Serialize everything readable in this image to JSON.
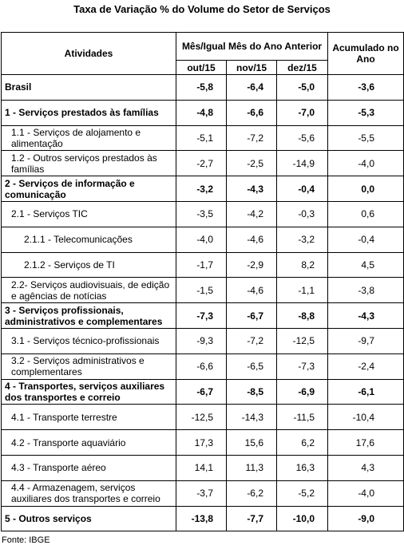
{
  "title": "Taxa de Variação % do Volume do Setor de Serviços",
  "table": {
    "header": {
      "activities": "Atividades",
      "group": "Mês/Igual Mês do Ano Anterior",
      "months": [
        "out/15",
        "nov/15",
        "dez/15"
      ],
      "accumulated": "Acumulado no Ano"
    },
    "rows": [
      [
        "Brasil",
        "-5,8",
        "-6,4",
        "-5,0",
        "-3,6"
      ],
      [
        "1 - Serviços prestados às famílias",
        "-4,8",
        "-6,6",
        "-7,0",
        "-5,3"
      ],
      [
        "1.1 - Serviços de alojamento e alimentação",
        "-5,1",
        "-7,2",
        "-5,6",
        "-5,5"
      ],
      [
        "1.2 - Outros serviços prestados às famílias",
        "-2,7",
        "-2,5",
        "-14,9",
        "-4,0"
      ],
      [
        "2 - Serviços de informação e comunicação",
        "-3,2",
        "-4,3",
        "-0,4",
        "0,0"
      ],
      [
        "2.1 - Serviços TIC",
        "-3,5",
        "-4,2",
        "-0,3",
        "0,6"
      ],
      [
        "2.1.1 - Telecomunicações",
        "-4,0",
        "-4,6",
        "-3,2",
        "-0,4"
      ],
      [
        "2.1.2 - Serviços de TI",
        "-1,7",
        "-2,9",
        "8,2",
        "4,5"
      ],
      [
        "2.2- Serviços audiovisuais, de edição e agências de notícias",
        "-1,5",
        "-4,6",
        "-1,1",
        "-3,8"
      ],
      [
        "3 - Serviços profissionais, administrativos e complementares",
        "-7,3",
        "-6,7",
        "-8,8",
        "-4,3"
      ],
      [
        "3.1 - Serviços técnico-profissionais",
        "-9,3",
        "-7,2",
        "-12,5",
        "-9,7"
      ],
      [
        "3.2 - Serviços administrativos e complementares",
        "-6,6",
        "-6,5",
        "-7,3",
        "-2,4"
      ],
      [
        "4 - Transportes, serviços auxiliares dos transportes e correio",
        "-6,7",
        "-8,5",
        "-6,9",
        "-6,1"
      ],
      [
        "4.1 - Transporte terrestre",
        "-12,5",
        "-14,3",
        "-11,5",
        "-10,4"
      ],
      [
        "4.2 - Transporte aquaviário",
        "17,3",
        "15,6",
        "6,2",
        "17,6"
      ],
      [
        "4.3 - Transporte aéreo",
        "14,1",
        "11,3",
        "16,3",
        "4,3"
      ],
      [
        "4.4 - Armazenagem, serviços auxiliares dos transportes e correio",
        "-3,7",
        "-6,2",
        "-5,2",
        "-4,0"
      ],
      [
        "5 - Outros serviços",
        "-13,8",
        "-7,7",
        "-10,0",
        "-9,0"
      ]
    ]
  },
  "source": "Fonte: IBGE"
}
